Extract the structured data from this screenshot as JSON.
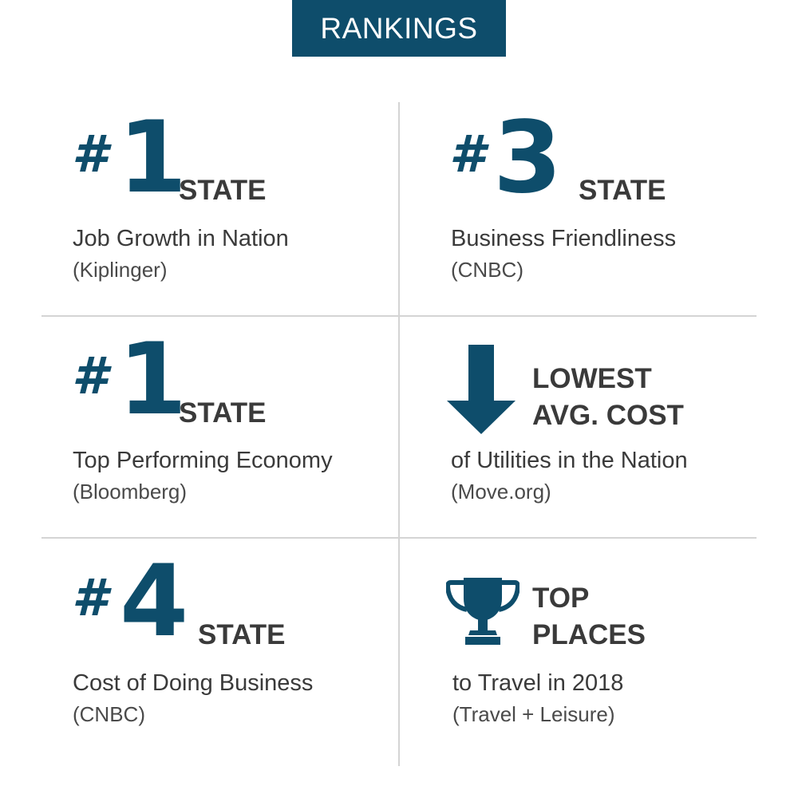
{
  "title": "RANKINGS",
  "rankings": [
    {
      "hash": "#",
      "rank": "1",
      "label": "STATE",
      "description": "Job Growth in Nation",
      "source": "(Kiplinger)"
    },
    {
      "hash": "#",
      "rank": "3",
      "label": "STATE",
      "description": "Business Friendliness",
      "source": "(CNBC)"
    },
    {
      "hash": "#",
      "rank": "1",
      "label": "STATE",
      "description": "Top Performing Economy",
      "source": "(Bloomberg)"
    },
    {
      "icon": "down-arrow-icon",
      "headline_line1": "LOWEST",
      "headline_line2": "AVG. COST",
      "description": "of Utilities in the Nation",
      "source": "(Move.org)"
    },
    {
      "hash": "#",
      "rank": "4",
      "label": "STATE",
      "description": "Cost of Doing Business",
      "source": "(CNBC)"
    },
    {
      "icon": "trophy-icon",
      "headline_line1": "TOP",
      "headline_line2": "PLACES",
      "description": "to Travel in 2018",
      "source": "(Travel + Leisure)"
    }
  ],
  "colors": {
    "accent": "#0e4d6b",
    "text": "#3a3a3a",
    "divider": "#d4d4d4"
  }
}
